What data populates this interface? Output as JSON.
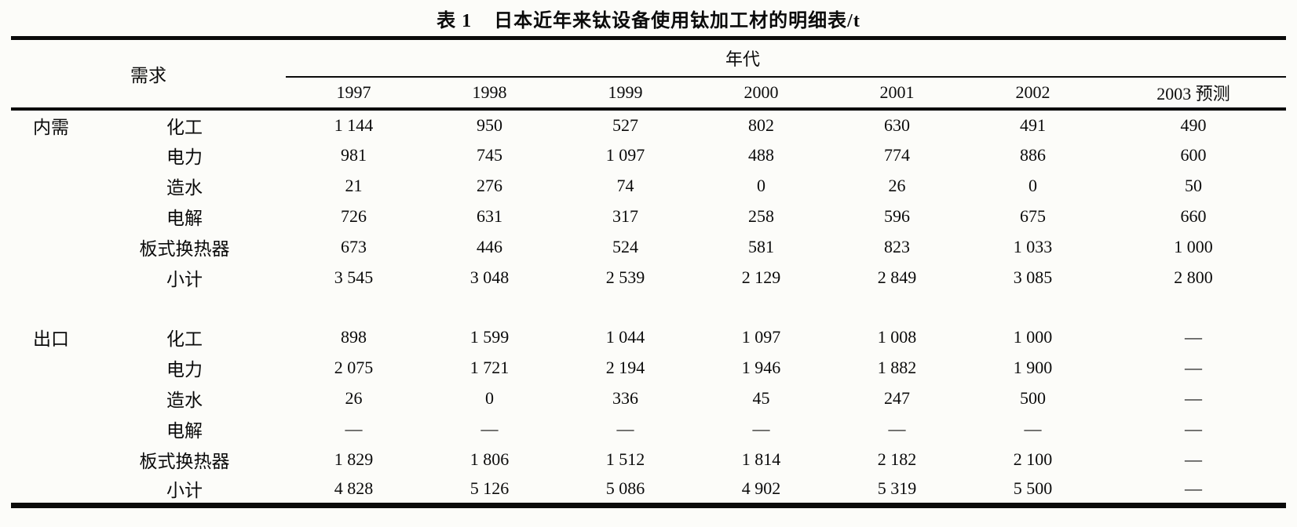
{
  "colors": {
    "ink": "#0b0b0b",
    "paper": "#fcfcf9"
  },
  "title": {
    "label": "表 1",
    "text": "日本近年来钛设备使用钛加工材的明细表/t"
  },
  "table": {
    "demand_header": "需求",
    "era_header": "年代",
    "year_columns": [
      "1997",
      "1998",
      "1999",
      "2000",
      "2001",
      "2002",
      "2003 预测"
    ],
    "groups": [
      {
        "name": "内需",
        "rows": [
          {
            "category": "化工",
            "values": [
              "1 144",
              "950",
              "527",
              "802",
              "630",
              "491",
              "490"
            ]
          },
          {
            "category": "电力",
            "values": [
              "981",
              "745",
              "1 097",
              "488",
              "774",
              "886",
              "600"
            ]
          },
          {
            "category": "造水",
            "values": [
              "21",
              "276",
              "74",
              "0",
              "26",
              "0",
              "50"
            ]
          },
          {
            "category": "电解",
            "values": [
              "726",
              "631",
              "317",
              "258",
              "596",
              "675",
              "660"
            ]
          },
          {
            "category": "板式换热器",
            "values": [
              "673",
              "446",
              "524",
              "581",
              "823",
              "1 033",
              "1 000"
            ]
          },
          {
            "category": "小计",
            "values": [
              "3 545",
              "3 048",
              "2 539",
              "2 129",
              "2 849",
              "3 085",
              "2 800"
            ]
          }
        ]
      },
      {
        "name": "出口",
        "rows": [
          {
            "category": "化工",
            "values": [
              "898",
              "1 599",
              "1 044",
              "1 097",
              "1 008",
              "1 000",
              "—"
            ]
          },
          {
            "category": "电力",
            "values": [
              "2 075",
              "1 721",
              "2 194",
              "1 946",
              "1 882",
              "1 900",
              "—"
            ]
          },
          {
            "category": "造水",
            "values": [
              "26",
              "0",
              "336",
              "45",
              "247",
              "500",
              "—"
            ]
          },
          {
            "category": "电解",
            "values": [
              "—",
              "—",
              "—",
              "—",
              "—",
              "—",
              "—"
            ]
          },
          {
            "category": "板式换热器",
            "values": [
              "1 829",
              "1 806",
              "1 512",
              "1 814",
              "2 182",
              "2 100",
              "—"
            ]
          },
          {
            "category": "小计",
            "values": [
              "4 828",
              "5 126",
              "5 086",
              "4 902",
              "5 319",
              "5 500",
              "—"
            ]
          }
        ]
      }
    ]
  }
}
